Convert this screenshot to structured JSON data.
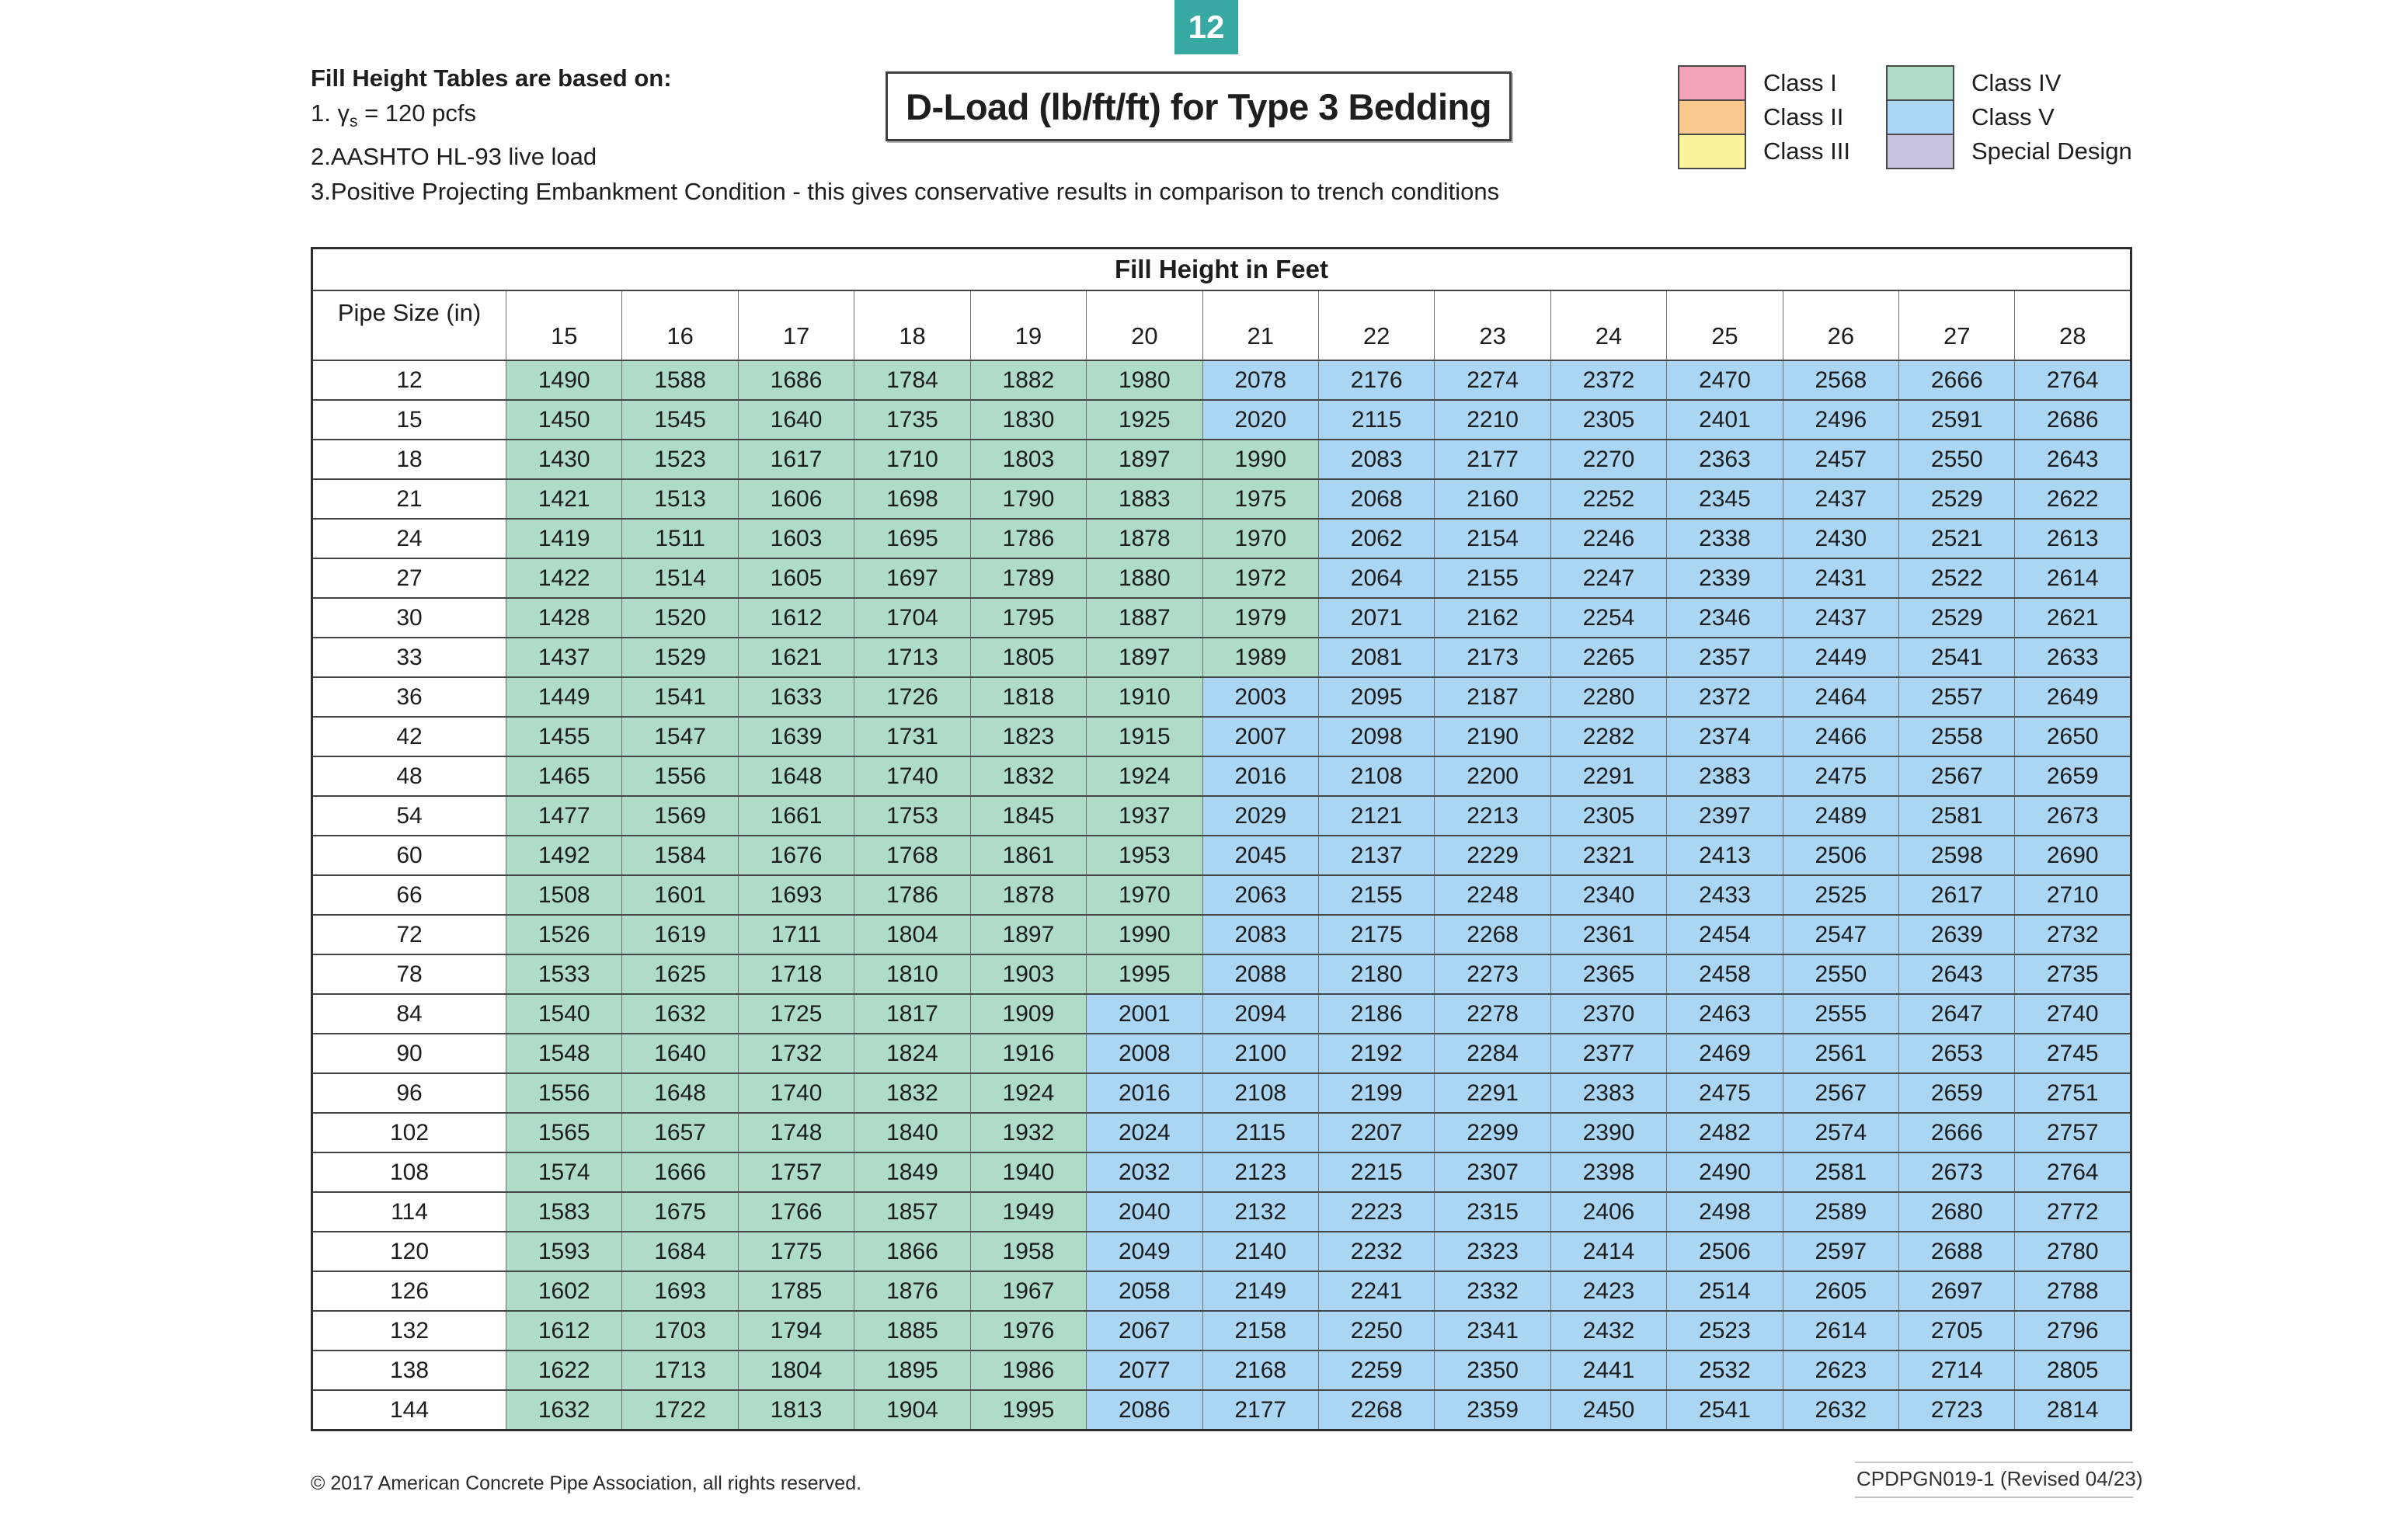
{
  "page": {
    "badge": "12",
    "badge_color": "#38a8a3",
    "title": "D-Load (lb/ft/ft) for Type 3 Bedding",
    "notes_heading": "Fill Height Tables are based on:",
    "notes": [
      {
        "pre": "1. γ",
        "sub": "s",
        "post": " = 120 pcfs"
      },
      {
        "text": "2.AASHTO HL-93 live load"
      },
      {
        "text": "3.Positive Projecting Embankment Condition - this gives conservative results in comparison to trench conditions"
      }
    ],
    "footer_left": "© 2017 American Concrete Pipe Association, all rights reserved.",
    "footer_right": "CPDPGN019-1 (Revised 04/23)"
  },
  "legend": {
    "groups": [
      {
        "items": [
          {
            "label": "Class I",
            "color": "#f2a2b7"
          },
          {
            "label": "Class II",
            "color": "#fbc98e"
          },
          {
            "label": "Class III",
            "color": "#fbf39b"
          }
        ]
      },
      {
        "items": [
          {
            "label": "Class IV",
            "color": "#aedcc6"
          },
          {
            "label": "Class V",
            "color": "#aad5f3"
          },
          {
            "label": "Special Design",
            "color": "#c8c4e0"
          }
        ]
      }
    ]
  },
  "table": {
    "title": "Fill Height in Feet",
    "row_header": "Pipe Size (in)",
    "columns": [
      15,
      16,
      17,
      18,
      19,
      20,
      21,
      22,
      23,
      24,
      25,
      26,
      27,
      28
    ],
    "class_iv_max": 2000,
    "class_iv_color": "#aedcc6",
    "class_v_color": "#aad5f3",
    "rows": [
      {
        "size": 12,
        "values": [
          1490,
          1588,
          1686,
          1784,
          1882,
          1980,
          2078,
          2176,
          2274,
          2372,
          2470,
          2568,
          2666,
          2764
        ]
      },
      {
        "size": 15,
        "values": [
          1450,
          1545,
          1640,
          1735,
          1830,
          1925,
          2020,
          2115,
          2210,
          2305,
          2401,
          2496,
          2591,
          2686
        ]
      },
      {
        "size": 18,
        "values": [
          1430,
          1523,
          1617,
          1710,
          1803,
          1897,
          1990,
          2083,
          2177,
          2270,
          2363,
          2457,
          2550,
          2643
        ]
      },
      {
        "size": 21,
        "values": [
          1421,
          1513,
          1606,
          1698,
          1790,
          1883,
          1975,
          2068,
          2160,
          2252,
          2345,
          2437,
          2529,
          2622
        ]
      },
      {
        "size": 24,
        "values": [
          1419,
          1511,
          1603,
          1695,
          1786,
          1878,
          1970,
          2062,
          2154,
          2246,
          2338,
          2430,
          2521,
          2613
        ]
      },
      {
        "size": 27,
        "values": [
          1422,
          1514,
          1605,
          1697,
          1789,
          1880,
          1972,
          2064,
          2155,
          2247,
          2339,
          2431,
          2522,
          2614
        ]
      },
      {
        "size": 30,
        "values": [
          1428,
          1520,
          1612,
          1704,
          1795,
          1887,
          1979,
          2071,
          2162,
          2254,
          2346,
          2437,
          2529,
          2621
        ]
      },
      {
        "size": 33,
        "values": [
          1437,
          1529,
          1621,
          1713,
          1805,
          1897,
          1989,
          2081,
          2173,
          2265,
          2357,
          2449,
          2541,
          2633
        ]
      },
      {
        "size": 36,
        "values": [
          1449,
          1541,
          1633,
          1726,
          1818,
          1910,
          2003,
          2095,
          2187,
          2280,
          2372,
          2464,
          2557,
          2649
        ]
      },
      {
        "size": 42,
        "values": [
          1455,
          1547,
          1639,
          1731,
          1823,
          1915,
          2007,
          2098,
          2190,
          2282,
          2374,
          2466,
          2558,
          2650
        ]
      },
      {
        "size": 48,
        "values": [
          1465,
          1556,
          1648,
          1740,
          1832,
          1924,
          2016,
          2108,
          2200,
          2291,
          2383,
          2475,
          2567,
          2659
        ]
      },
      {
        "size": 54,
        "values": [
          1477,
          1569,
          1661,
          1753,
          1845,
          1937,
          2029,
          2121,
          2213,
          2305,
          2397,
          2489,
          2581,
          2673
        ]
      },
      {
        "size": 60,
        "values": [
          1492,
          1584,
          1676,
          1768,
          1861,
          1953,
          2045,
          2137,
          2229,
          2321,
          2413,
          2506,
          2598,
          2690
        ]
      },
      {
        "size": 66,
        "values": [
          1508,
          1601,
          1693,
          1786,
          1878,
          1970,
          2063,
          2155,
          2248,
          2340,
          2433,
          2525,
          2617,
          2710
        ]
      },
      {
        "size": 72,
        "values": [
          1526,
          1619,
          1711,
          1804,
          1897,
          1990,
          2083,
          2175,
          2268,
          2361,
          2454,
          2547,
          2639,
          2732
        ]
      },
      {
        "size": 78,
        "values": [
          1533,
          1625,
          1718,
          1810,
          1903,
          1995,
          2088,
          2180,
          2273,
          2365,
          2458,
          2550,
          2643,
          2735
        ]
      },
      {
        "size": 84,
        "values": [
          1540,
          1632,
          1725,
          1817,
          1909,
          2001,
          2094,
          2186,
          2278,
          2370,
          2463,
          2555,
          2647,
          2740
        ]
      },
      {
        "size": 90,
        "values": [
          1548,
          1640,
          1732,
          1824,
          1916,
          2008,
          2100,
          2192,
          2284,
          2377,
          2469,
          2561,
          2653,
          2745
        ]
      },
      {
        "size": 96,
        "values": [
          1556,
          1648,
          1740,
          1832,
          1924,
          2016,
          2108,
          2199,
          2291,
          2383,
          2475,
          2567,
          2659,
          2751
        ]
      },
      {
        "size": 102,
        "values": [
          1565,
          1657,
          1748,
          1840,
          1932,
          2024,
          2115,
          2207,
          2299,
          2390,
          2482,
          2574,
          2666,
          2757
        ]
      },
      {
        "size": 108,
        "values": [
          1574,
          1666,
          1757,
          1849,
          1940,
          2032,
          2123,
          2215,
          2307,
          2398,
          2490,
          2581,
          2673,
          2764
        ]
      },
      {
        "size": 114,
        "values": [
          1583,
          1675,
          1766,
          1857,
          1949,
          2040,
          2132,
          2223,
          2315,
          2406,
          2498,
          2589,
          2680,
          2772
        ]
      },
      {
        "size": 120,
        "values": [
          1593,
          1684,
          1775,
          1866,
          1958,
          2049,
          2140,
          2232,
          2323,
          2414,
          2506,
          2597,
          2688,
          2780
        ]
      },
      {
        "size": 126,
        "values": [
          1602,
          1693,
          1785,
          1876,
          1967,
          2058,
          2149,
          2241,
          2332,
          2423,
          2514,
          2605,
          2697,
          2788
        ]
      },
      {
        "size": 132,
        "values": [
          1612,
          1703,
          1794,
          1885,
          1976,
          2067,
          2158,
          2250,
          2341,
          2432,
          2523,
          2614,
          2705,
          2796
        ]
      },
      {
        "size": 138,
        "values": [
          1622,
          1713,
          1804,
          1895,
          1986,
          2077,
          2168,
          2259,
          2350,
          2441,
          2532,
          2623,
          2714,
          2805
        ]
      },
      {
        "size": 144,
        "values": [
          1632,
          1722,
          1813,
          1904,
          1995,
          2086,
          2177,
          2268,
          2359,
          2450,
          2541,
          2632,
          2723,
          2814
        ]
      }
    ]
  }
}
